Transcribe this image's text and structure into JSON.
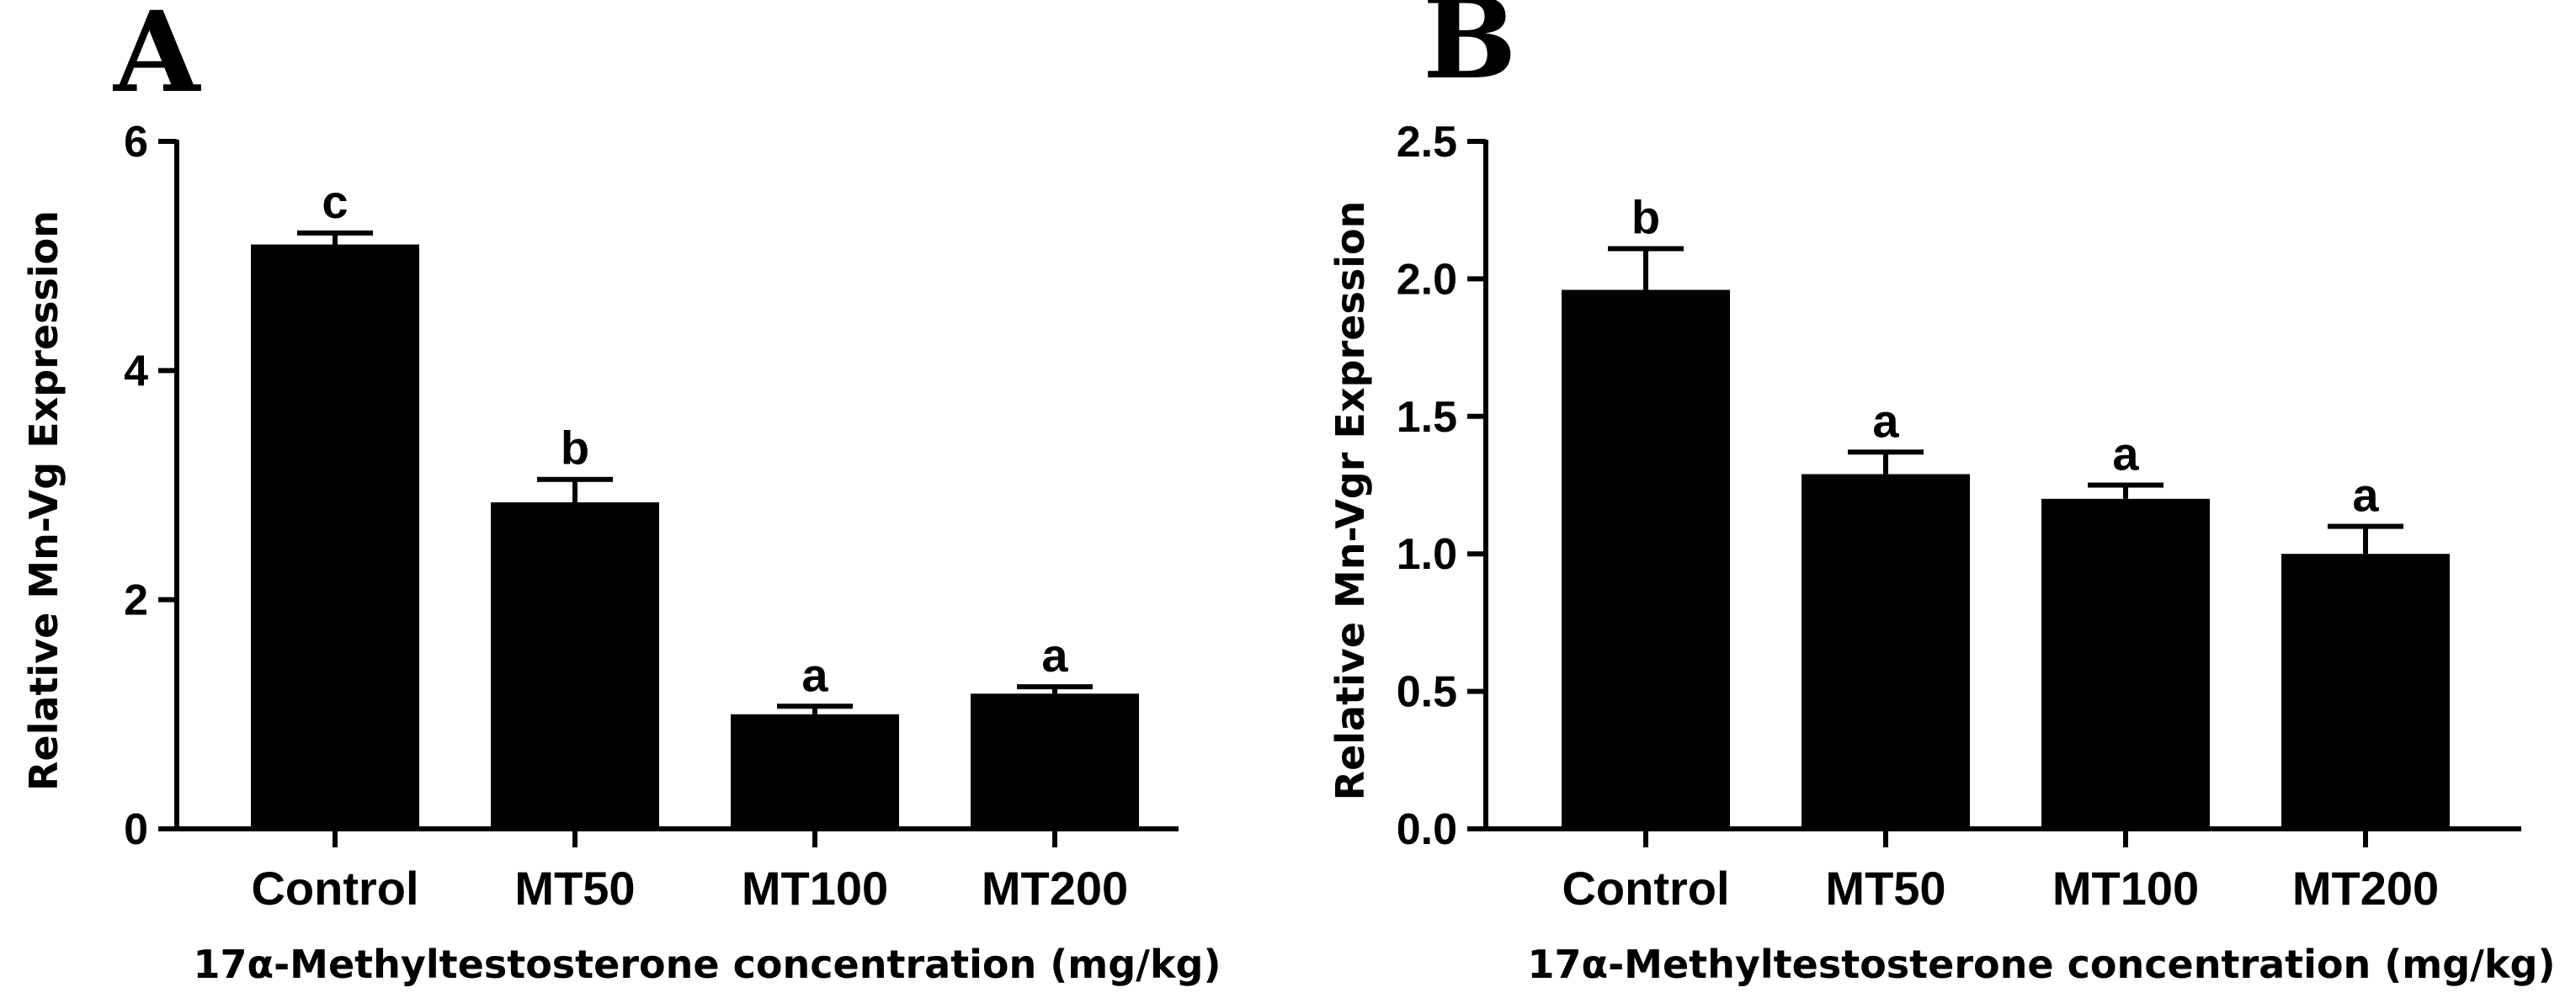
{
  "chart_data": [
    {
      "type": "bar",
      "panel_label": "A",
      "categories": [
        "Control",
        "MT50",
        "MT100",
        "MT200"
      ],
      "values": [
        5.1,
        2.85,
        1.0,
        1.18
      ],
      "errors": [
        0.1,
        0.2,
        0.07,
        0.06
      ],
      "significance": [
        "c",
        "b",
        "a",
        "a"
      ],
      "xlabel": "17α-Methyltestosterone concentration (mg/kg)",
      "ylabel": "Relative Mn-Vg Expression",
      "ylim": [
        0,
        6
      ],
      "yticks": [
        0,
        2,
        4,
        6
      ],
      "ytick_labels": [
        "0",
        "2",
        "4",
        "6"
      ],
      "bar_color": "#000000"
    },
    {
      "type": "bar",
      "panel_label": "B",
      "categories": [
        "Control",
        "MT50",
        "MT100",
        "MT200"
      ],
      "values": [
        1.96,
        1.29,
        1.2,
        1.0
      ],
      "errors": [
        0.15,
        0.08,
        0.05,
        0.1
      ],
      "significance": [
        "b",
        "a",
        "a",
        "a"
      ],
      "xlabel": "17α-Methyltestosterone concentration (mg/kg)",
      "ylabel": "Relative Mn-Vgr Expression",
      "ylim": [
        0,
        2.5
      ],
      "yticks": [
        0,
        0.5,
        1.0,
        1.5,
        2.0,
        2.5
      ],
      "ytick_labels": [
        "0.0",
        "0.5",
        "1.0",
        "1.5",
        "2.0",
        "2.5"
      ],
      "bar_color": "#000000"
    }
  ]
}
